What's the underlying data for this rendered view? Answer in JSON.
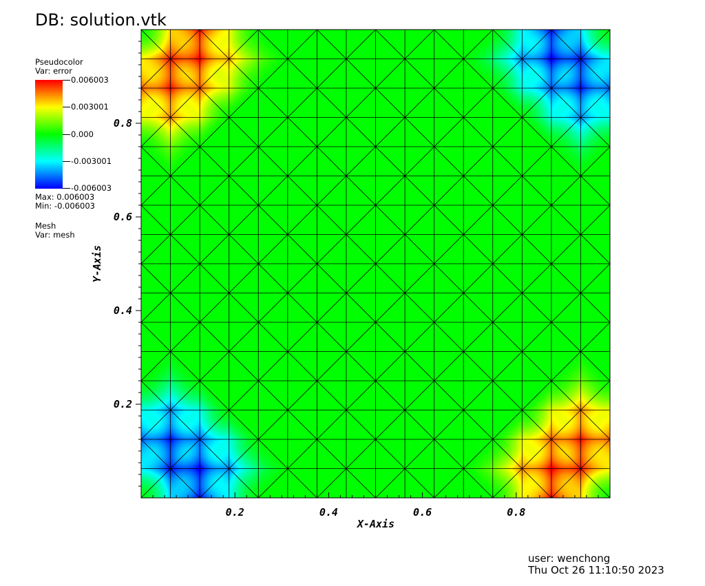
{
  "title": "DB: solution.vtk",
  "legend": {
    "pseudocolor_label": "Pseudocolor",
    "pseudocolor_var": "Var: error",
    "colorbar_ticks": [
      "0.006003",
      "0.003001",
      "0.000",
      "-0.003001",
      "-0.006003"
    ],
    "max_label": "Max:  0.006003",
    "min_label": "Min: -0.006003",
    "mesh_label": "Mesh",
    "mesh_var": "Var: mesh",
    "colormap": [
      "#0000ff",
      "#00ffff",
      "#00ff00",
      "#ffff00",
      "#ff0000"
    ]
  },
  "footer": {
    "user": "user: wenchong",
    "timestamp": "Thu Oct 26 11:10:50 2023"
  },
  "chart_data": {
    "type": "heatmap",
    "variable": "error",
    "xlabel": "X-Axis",
    "ylabel": "Y-Axis",
    "xlim": [
      0,
      1
    ],
    "ylim": [
      0,
      1
    ],
    "value_range": [
      -0.006003,
      0.006003
    ],
    "x_ticks": [
      0.2,
      0.4,
      0.6,
      0.8
    ],
    "y_ticks": [
      0.2,
      0.4,
      0.6,
      0.8
    ],
    "tick_labels_x": [
      "0.2",
      "0.4",
      "0.6",
      "0.8"
    ],
    "tick_labels_y": [
      "0.2",
      "0.4",
      "0.6",
      "0.8"
    ],
    "mesh_divisions": 16,
    "mesh_type": "triangulated square grid (criss-cross diagonals)",
    "error_peaks": [
      {
        "x": 0.0625,
        "y": 0.9375,
        "value": 0.006003
      },
      {
        "x": 0.125,
        "y": 0.875,
        "value": 0.005
      },
      {
        "x": 0.0625,
        "y": 0.8125,
        "value": 0.0045
      },
      {
        "x": 0.125,
        "y": 1.0,
        "value": 0.006
      },
      {
        "x": 0.0,
        "y": 0.875,
        "value": 0.005
      },
      {
        "x": 0.1875,
        "y": 0.9375,
        "value": 0.004
      },
      {
        "x": 0.875,
        "y": 1.0,
        "value": -0.006
      },
      {
        "x": 0.9375,
        "y": 0.9375,
        "value": -0.006003
      },
      {
        "x": 0.8125,
        "y": 0.9375,
        "value": -0.0045
      },
      {
        "x": 0.875,
        "y": 0.875,
        "value": -0.005
      },
      {
        "x": 0.9375,
        "y": 0.8125,
        "value": -0.0045
      },
      {
        "x": 1.0,
        "y": 0.875,
        "value": -0.005
      },
      {
        "x": 0.0625,
        "y": 0.0625,
        "value": -0.006003
      },
      {
        "x": 0.125,
        "y": 0.125,
        "value": -0.005
      },
      {
        "x": 0.0625,
        "y": 0.1875,
        "value": -0.0045
      },
      {
        "x": 0.0,
        "y": 0.125,
        "value": -0.005
      },
      {
        "x": 0.125,
        "y": 0.0,
        "value": -0.006
      },
      {
        "x": 0.1875,
        "y": 0.0625,
        "value": -0.0045
      },
      {
        "x": 0.9375,
        "y": 0.0625,
        "value": 0.006003
      },
      {
        "x": 0.875,
        "y": 0.125,
        "value": 0.005
      },
      {
        "x": 0.9375,
        "y": 0.1875,
        "value": 0.0045
      },
      {
        "x": 0.875,
        "y": 0.0,
        "value": 0.006
      },
      {
        "x": 1.0,
        "y": 0.125,
        "value": 0.005
      },
      {
        "x": 0.8125,
        "y": 0.0625,
        "value": 0.0045
      }
    ]
  }
}
